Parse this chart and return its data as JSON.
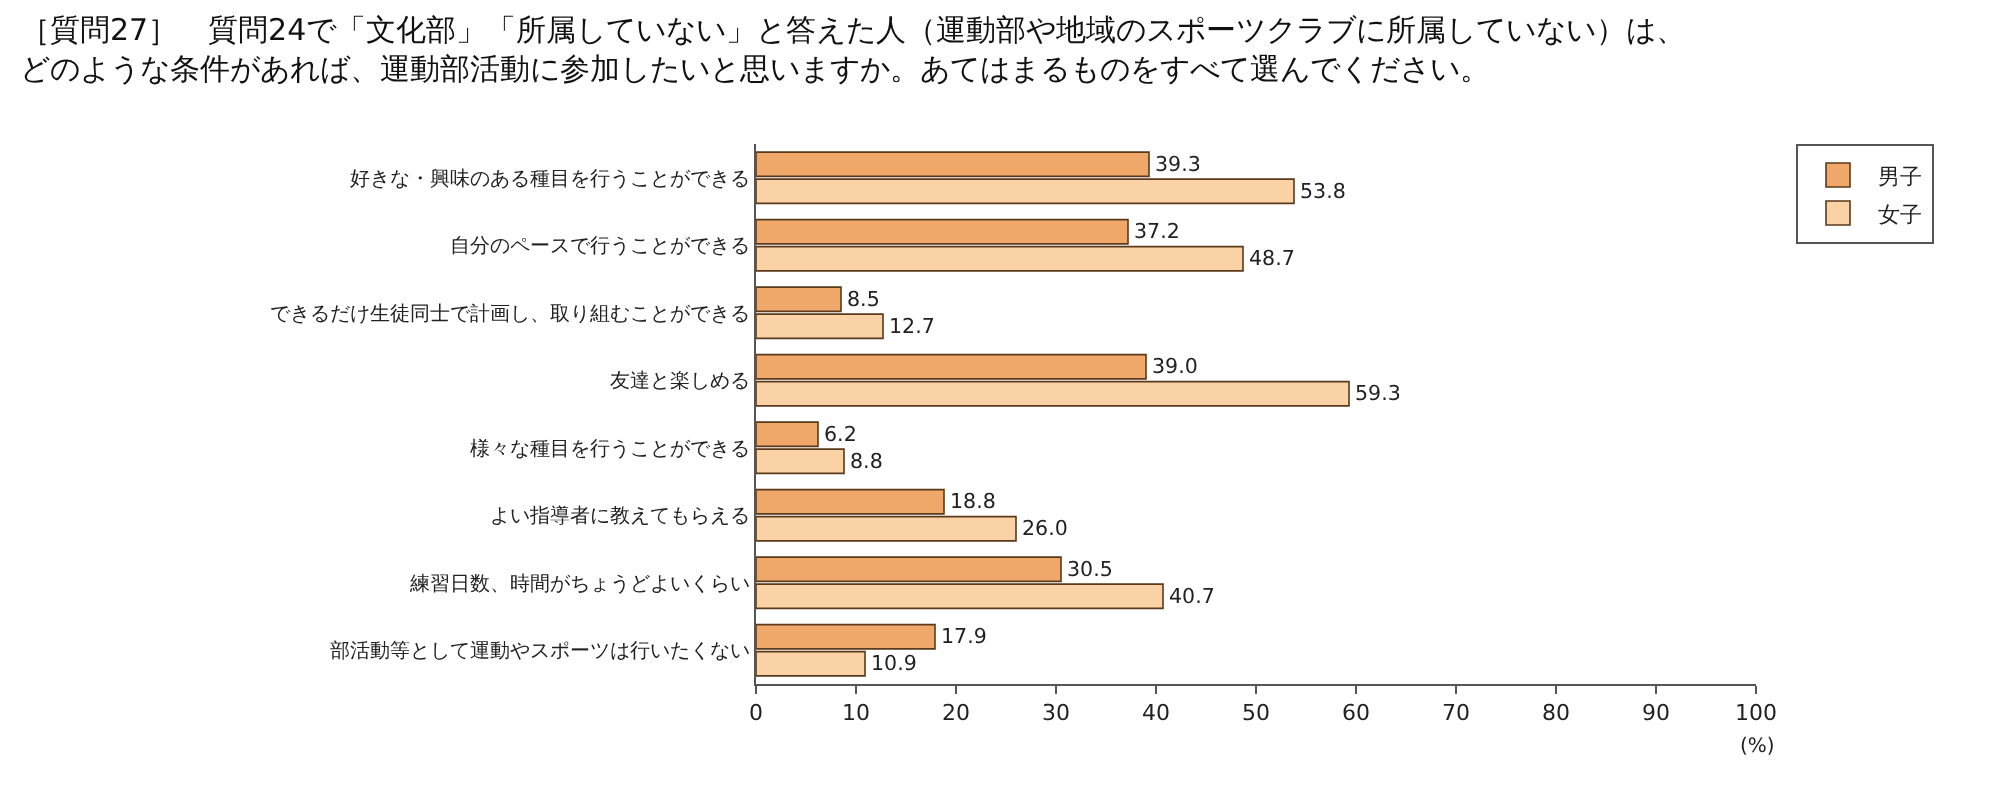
{
  "chart_data": {
    "type": "bar",
    "orientation": "horizontal",
    "title": "［質問27］　質問24で「文化部」「所属していない」と答えた人（運動部や地域のスポーツクラブに所属していない）は、どのような条件があれば、運動部活動に参加したいと思いますか。あてはまるものをすべて選んでください。",
    "categories": [
      "好きな・興味のある種目を行うことができる",
      "自分のペースで行うことができる",
      "できるだけ生徒同士で計画し、取り組むことができる",
      "友達と楽しめる",
      "様々な種目を行うことができる",
      "よい指導者に教えてもらえる",
      "練習日数、時間がちょうどよいくらい",
      "部活動等として運動やスポーツは行いたくない"
    ],
    "series": [
      {
        "name": "男子",
        "color": "#f0a86a",
        "values": [
          39.3,
          37.2,
          8.5,
          39.0,
          6.2,
          18.8,
          30.5,
          17.9
        ],
        "value_labels": [
          "39.3",
          "37.2",
          "8.5",
          "39.0",
          "6.2",
          "18.8",
          "30.5",
          "17.9"
        ]
      },
      {
        "name": "女子",
        "color": "#fad2a6",
        "values": [
          53.8,
          48.7,
          12.7,
          59.3,
          8.8,
          26.0,
          40.7,
          10.9
        ],
        "value_labels": [
          "53.8",
          "48.7",
          "12.7",
          "59.3",
          "8.8",
          "26.0",
          "40.7",
          "10.9"
        ]
      }
    ],
    "xlim": [
      0,
      100
    ],
    "xticks": [
      0,
      10,
      20,
      30,
      40,
      50,
      60,
      70,
      80,
      90,
      100
    ],
    "xlabel": "(%)",
    "grid": false,
    "legend": "top right"
  }
}
